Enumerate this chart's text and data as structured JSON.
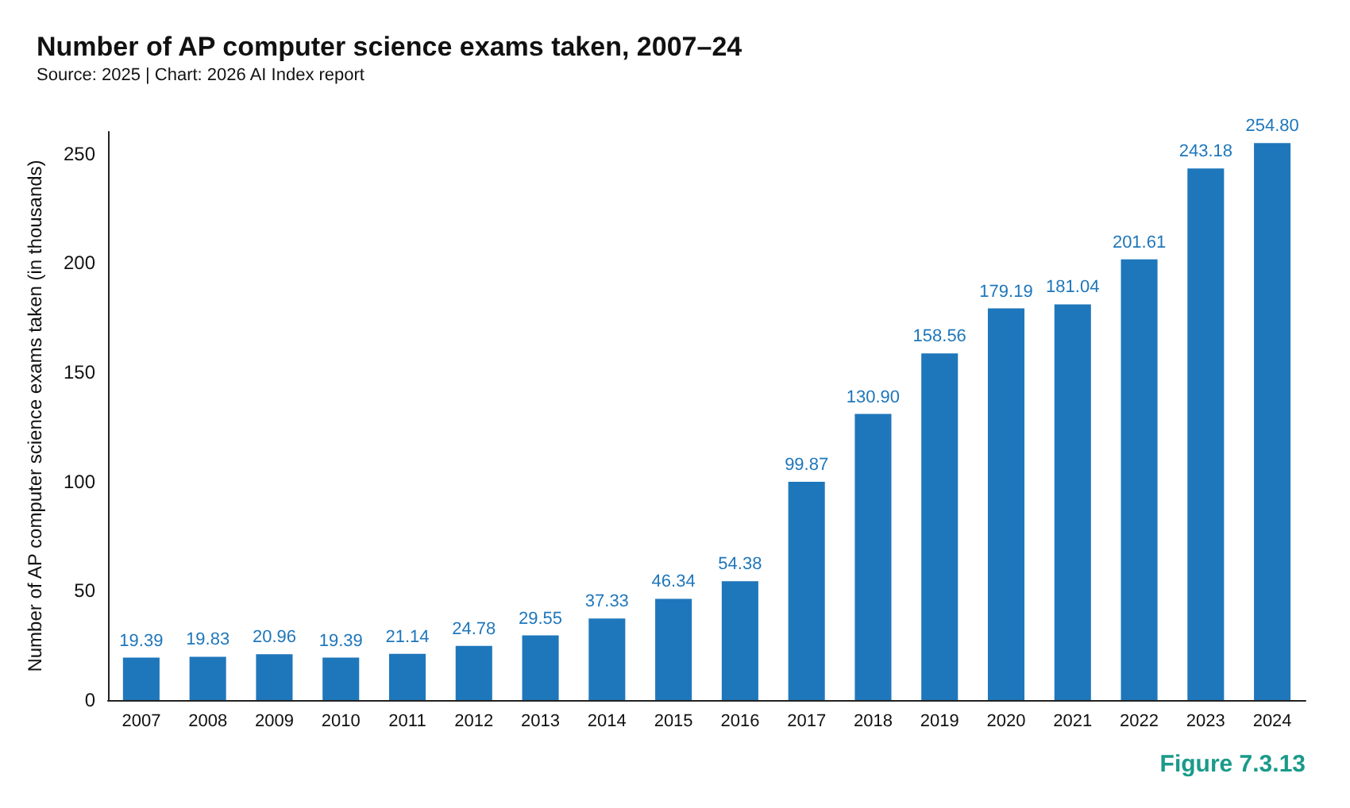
{
  "chart_data": {
    "type": "bar",
    "title": "Number of AP computer science exams taken, 2007–24",
    "subtitle": "Source: 2025 | Chart: 2026 AI Index report",
    "ylabel": "Number of AP computer science exams taken (in thousands)",
    "categories": [
      "2007",
      "2008",
      "2009",
      "2010",
      "2011",
      "2012",
      "2013",
      "2014",
      "2015",
      "2016",
      "2017",
      "2018",
      "2019",
      "2020",
      "2021",
      "2022",
      "2023",
      "2024"
    ],
    "values": [
      19.39,
      19.83,
      20.96,
      19.39,
      21.14,
      24.78,
      29.55,
      37.33,
      46.34,
      54.38,
      99.87,
      130.9,
      158.56,
      179.19,
      181.04,
      201.61,
      243.18,
      254.8
    ],
    "value_labels": [
      "19.39",
      "19.83",
      "20.96",
      "19.39",
      "21.14",
      "24.78",
      "29.55",
      "37.33",
      "46.34",
      "54.38",
      "99.87",
      "130.90",
      "158.56",
      "179.19",
      "181.04",
      "201.61",
      "243.18",
      "254.80"
    ],
    "color": "#1f77bb",
    "ylim": [
      0,
      260
    ],
    "yticks": [
      0,
      50,
      100,
      150,
      200,
      250
    ],
    "grid": false,
    "annotations": [
      "Figure 7.3.13"
    ]
  }
}
